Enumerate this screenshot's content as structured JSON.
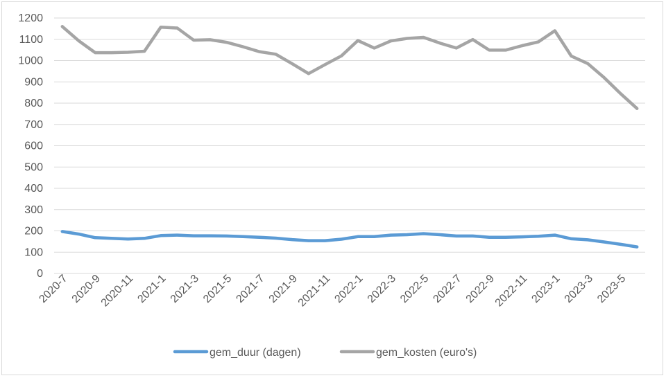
{
  "chart_data": {
    "type": "line",
    "title": "",
    "xlabel": "",
    "ylabel": "",
    "ylim": [
      0,
      1200
    ],
    "yticks": [
      0,
      100,
      200,
      300,
      400,
      500,
      600,
      700,
      800,
      900,
      1000,
      1100,
      1200
    ],
    "grid": true,
    "legend": "bottom",
    "categories": [
      "2020-7",
      "2020-8",
      "2020-9",
      "2020-10",
      "2020-11",
      "2020-12",
      "2021-1",
      "2021-2",
      "2021-3",
      "2021-4",
      "2021-5",
      "2021-6",
      "2021-7",
      "2021-8",
      "2021-9",
      "2021-10",
      "2021-11",
      "2021-12",
      "2022-1",
      "2022-2",
      "2022-3",
      "2022-4",
      "2022-5",
      "2022-6",
      "2022-7",
      "2022-8",
      "2022-9",
      "2022-10",
      "2022-11",
      "2022-12",
      "2023-1",
      "2023-2",
      "2023-3",
      "2023-4",
      "2023-5",
      "2023-6"
    ],
    "tick_labels": [
      "2020-7",
      "",
      "2020-9",
      "",
      "2020-11",
      "",
      "2021-1",
      "",
      "2021-3",
      "",
      "2021-5",
      "",
      "2021-7",
      "",
      "2021-9",
      "",
      "2021-11",
      "",
      "2022-1",
      "",
      "2022-3",
      "",
      "2022-5",
      "",
      "2022-7",
      "",
      "2022-9",
      "",
      "2022-11",
      "",
      "2023-1",
      "",
      "2023-3",
      "",
      "2023-5",
      ""
    ],
    "series": [
      {
        "name": "gem_duur (dagen)",
        "color": "#5b9bd5",
        "values": [
          197,
          185,
          168,
          165,
          162,
          165,
          178,
          180,
          177,
          177,
          176,
          173,
          170,
          166,
          159,
          154,
          154,
          161,
          173,
          173,
          180,
          182,
          187,
          182,
          176,
          176,
          170,
          170,
          172,
          175,
          180,
          163,
          158,
          148,
          137,
          125
        ]
      },
      {
        "name": "gem_kosten (euro's)",
        "color": "#a5a5a5",
        "values": [
          1160,
          1093,
          1037,
          1037,
          1039,
          1044,
          1157,
          1153,
          1096,
          1098,
          1086,
          1065,
          1042,
          1030,
          985,
          939,
          981,
          1022,
          1094,
          1059,
          1092,
          1104,
          1109,
          1082,
          1059,
          1099,
          1049,
          1049,
          1070,
          1088,
          1140,
          1021,
          986,
          920,
          845,
          775
        ]
      }
    ]
  }
}
